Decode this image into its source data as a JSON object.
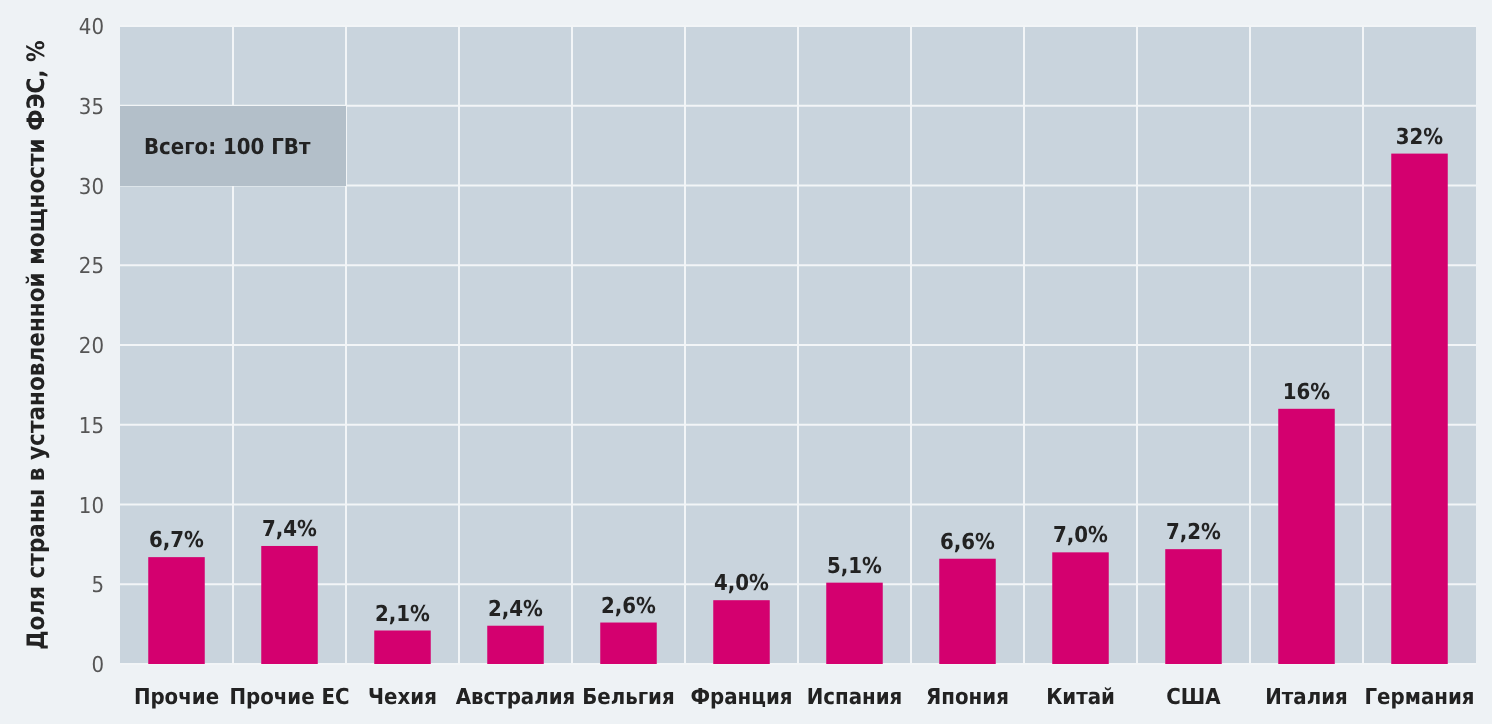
{
  "chart_data": {
    "type": "bar",
    "ylabel": "Доля страны в установленной мощности ФЭС, %",
    "categories": [
      "Прочие",
      "Прочие ЕС",
      "Чехия",
      "Австралия",
      "Бельгия",
      "Франция",
      "Испания",
      "Япония",
      "Китай",
      "США",
      "Италия",
      "Германия"
    ],
    "values": [
      6.7,
      7.4,
      2.1,
      2.4,
      2.6,
      4.0,
      5.1,
      6.6,
      7.0,
      7.2,
      16,
      32
    ],
    "value_labels": [
      "6,7%",
      "7,4%",
      "2,1%",
      "2,4%",
      "2,6%",
      "4,0%",
      "5,1%",
      "6,6%",
      "7,0%",
      "7,2%",
      "16%",
      "32%"
    ],
    "color": "#d4006f",
    "ylim": [
      0,
      40
    ],
    "yticks": [
      0,
      5,
      10,
      15,
      20,
      25,
      30,
      35,
      40
    ],
    "grid": true,
    "annotations": [
      "Всего: 100 ГВт"
    ]
  }
}
